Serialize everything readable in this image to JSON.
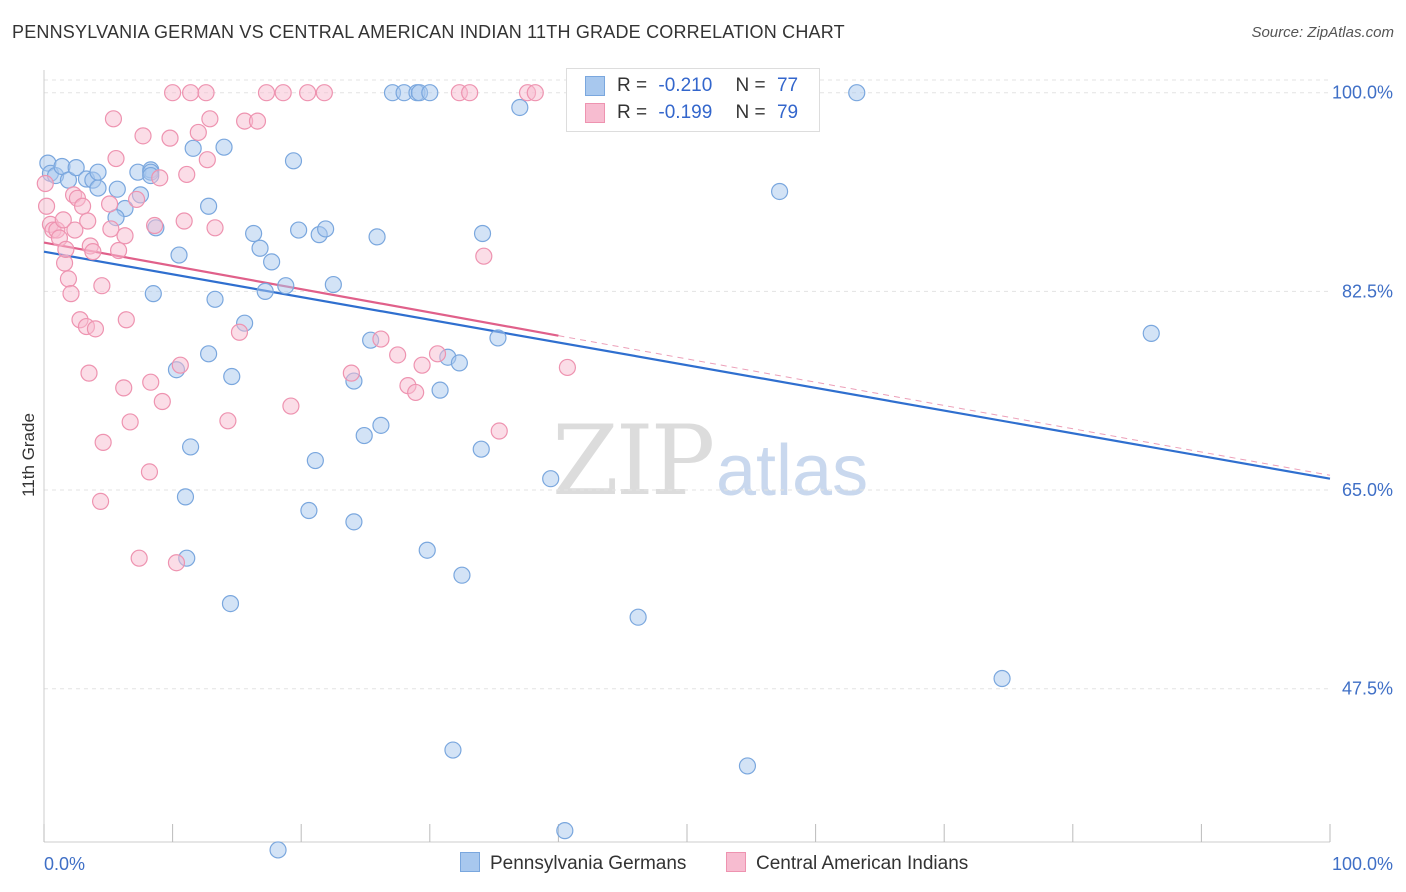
{
  "title": "PENNSYLVANIA GERMAN VS CENTRAL AMERICAN INDIAN 11TH GRADE CORRELATION CHART",
  "source": "Source: ZipAtlas.com",
  "watermark": {
    "zip": "ZIP",
    "atlas": "atlas"
  },
  "legend": {
    "r_label": "R =",
    "n_label": "N =",
    "rows": [
      {
        "r": "-0.210",
        "n": "77"
      },
      {
        "r": "-0.199",
        "n": "79"
      }
    ]
  },
  "colors": {
    "blue_fill": "#a8c8ee",
    "blue_stroke": "#7aa7de",
    "blue_line": "#2f6fcf",
    "pink_fill": "#f7bcd0",
    "pink_stroke": "#ee93b0",
    "pink_line": "#e0608a",
    "axis_label": "#3f6fc6",
    "grid": "#e3e3e3"
  },
  "chart_data": {
    "type": "scatter",
    "title": "PENNSYLVANIA GERMAN VS CENTRAL AMERICAN INDIAN 11TH GRADE CORRELATION CHART",
    "xlabel": "",
    "ylabel": "11th Grade",
    "xlim": [
      0,
      100
    ],
    "ylim": [
      34,
      102
    ],
    "x_tick_labels": [
      "0.0%",
      "100.0%"
    ],
    "y_ticks": [
      47.5,
      65.0,
      82.5,
      100.0
    ],
    "y_tick_labels": [
      "47.5%",
      "65.0%",
      "82.5%",
      "100.0%"
    ],
    "grid": true,
    "legend_position": "top-center",
    "series": [
      {
        "name": "Pennsylvania Germans",
        "r": -0.21,
        "n": 77,
        "trend": {
          "x": [
            0,
            100
          ],
          "y": [
            86.0,
            66.0
          ]
        },
        "points": [
          [
            0.3,
            93.8
          ],
          [
            0.5,
            92.9
          ],
          [
            0.9,
            92.7
          ],
          [
            1.4,
            93.5
          ],
          [
            1.9,
            92.3
          ],
          [
            2.5,
            93.4
          ],
          [
            3.3,
            92.4
          ],
          [
            3.8,
            92.3
          ],
          [
            4.2,
            93.0
          ],
          [
            4.2,
            91.6
          ],
          [
            5.7,
            91.5
          ],
          [
            6.3,
            89.8
          ],
          [
            5.6,
            89.0
          ],
          [
            7.3,
            93.0
          ],
          [
            7.5,
            91.0
          ],
          [
            8.5,
            82.3
          ],
          [
            8.3,
            93.2
          ],
          [
            8.3,
            93.0
          ],
          [
            8.3,
            92.7
          ],
          [
            8.7,
            88.1
          ],
          [
            10.3,
            75.6
          ],
          [
            10.5,
            85.7
          ],
          [
            11.0,
            64.4
          ],
          [
            11.4,
            68.8
          ],
          [
            11.1,
            59.0
          ],
          [
            11.6,
            95.1
          ],
          [
            12.8,
            77.0
          ],
          [
            12.8,
            90.0
          ],
          [
            13.3,
            81.8
          ],
          [
            14.0,
            95.2
          ],
          [
            14.5,
            55.0
          ],
          [
            14.6,
            75.0
          ],
          [
            15.6,
            79.7
          ],
          [
            16.3,
            87.6
          ],
          [
            16.8,
            86.3
          ],
          [
            17.2,
            82.5
          ],
          [
            17.7,
            85.1
          ],
          [
            18.2,
            33.3
          ],
          [
            18.8,
            83.0
          ],
          [
            19.4,
            94.0
          ],
          [
            19.8,
            87.9
          ],
          [
            20.6,
            63.2
          ],
          [
            21.1,
            67.6
          ],
          [
            21.4,
            87.5
          ],
          [
            21.9,
            88.0
          ],
          [
            22.5,
            83.1
          ],
          [
            24.1,
            62.2
          ],
          [
            24.1,
            74.6
          ],
          [
            24.9,
            69.8
          ],
          [
            25.4,
            78.2
          ],
          [
            25.9,
            87.3
          ],
          [
            26.2,
            70.7
          ],
          [
            27.1,
            100.0
          ],
          [
            28.0,
            100.0
          ],
          [
            29.0,
            100.0
          ],
          [
            29.2,
            100.0
          ],
          [
            30.0,
            100.0
          ],
          [
            29.8,
            59.7
          ],
          [
            30.8,
            73.8
          ],
          [
            31.4,
            76.7
          ],
          [
            31.8,
            42.1
          ],
          [
            32.3,
            76.2
          ],
          [
            32.5,
            57.5
          ],
          [
            34.0,
            68.6
          ],
          [
            34.1,
            87.6
          ],
          [
            35.3,
            78.4
          ],
          [
            37.0,
            98.7
          ],
          [
            39.4,
            66.0
          ],
          [
            40.5,
            35.0
          ],
          [
            46.2,
            53.8
          ],
          [
            46.8,
            100.0
          ],
          [
            50.2,
            100.0
          ],
          [
            54.0,
            100.0
          ],
          [
            54.7,
            40.7
          ],
          [
            57.2,
            91.3
          ],
          [
            63.2,
            100.0
          ],
          [
            74.5,
            48.4
          ],
          [
            86.1,
            78.8
          ]
        ]
      },
      {
        "name": "Central American Indians",
        "r": -0.199,
        "n": 79,
        "trend": {
          "x": [
            0,
            40
          ],
          "y": [
            86.8,
            78.6
          ]
        },
        "points": [
          [
            0.1,
            92.0
          ],
          [
            0.2,
            90.0
          ],
          [
            0.5,
            88.4
          ],
          [
            0.7,
            87.9
          ],
          [
            1.0,
            87.9
          ],
          [
            1.2,
            87.2
          ],
          [
            1.5,
            88.8
          ],
          [
            1.6,
            85.0
          ],
          [
            1.7,
            86.2
          ],
          [
            1.9,
            83.6
          ],
          [
            2.1,
            82.3
          ],
          [
            2.3,
            91.0
          ],
          [
            2.4,
            87.9
          ],
          [
            2.6,
            90.7
          ],
          [
            2.8,
            80.0
          ],
          [
            3.0,
            90.0
          ],
          [
            3.3,
            79.4
          ],
          [
            3.4,
            88.7
          ],
          [
            3.5,
            75.3
          ],
          [
            3.6,
            86.5
          ],
          [
            3.8,
            86.0
          ],
          [
            4.0,
            79.2
          ],
          [
            4.4,
            64.0
          ],
          [
            4.5,
            83.0
          ],
          [
            4.6,
            69.2
          ],
          [
            5.1,
            90.2
          ],
          [
            5.2,
            88.0
          ],
          [
            5.4,
            97.7
          ],
          [
            5.6,
            94.2
          ],
          [
            5.8,
            86.1
          ],
          [
            6.2,
            74.0
          ],
          [
            6.3,
            87.4
          ],
          [
            6.4,
            80.0
          ],
          [
            6.7,
            71.0
          ],
          [
            7.2,
            90.6
          ],
          [
            7.4,
            59.0
          ],
          [
            7.7,
            96.2
          ],
          [
            8.2,
            66.6
          ],
          [
            8.3,
            74.5
          ],
          [
            8.6,
            88.3
          ],
          [
            9.0,
            92.5
          ],
          [
            9.2,
            72.8
          ],
          [
            9.8,
            96.0
          ],
          [
            10.0,
            100.0
          ],
          [
            10.3,
            58.6
          ],
          [
            10.6,
            76.0
          ],
          [
            10.9,
            88.7
          ],
          [
            11.1,
            92.8
          ],
          [
            11.4,
            100.0
          ],
          [
            12.0,
            96.5
          ],
          [
            12.6,
            100.0
          ],
          [
            12.7,
            94.1
          ],
          [
            12.9,
            97.7
          ],
          [
            13.3,
            88.1
          ],
          [
            14.3,
            71.1
          ],
          [
            15.2,
            78.9
          ],
          [
            15.6,
            97.5
          ],
          [
            16.6,
            97.5
          ],
          [
            17.3,
            100.0
          ],
          [
            18.6,
            100.0
          ],
          [
            19.2,
            72.4
          ],
          [
            20.5,
            100.0
          ],
          [
            21.8,
            100.0
          ],
          [
            23.9,
            75.3
          ],
          [
            26.2,
            78.3
          ],
          [
            27.5,
            76.9
          ],
          [
            28.3,
            74.2
          ],
          [
            28.9,
            73.6
          ],
          [
            29.4,
            76.0
          ],
          [
            30.6,
            77.0
          ],
          [
            32.3,
            100.0
          ],
          [
            33.1,
            100.0
          ],
          [
            34.2,
            85.6
          ],
          [
            35.4,
            70.2
          ],
          [
            37.6,
            100.0
          ],
          [
            38.2,
            100.0
          ],
          [
            40.7,
            75.8
          ],
          [
            42.3,
            100.0
          ],
          [
            45.0,
            100.0
          ]
        ]
      }
    ]
  }
}
